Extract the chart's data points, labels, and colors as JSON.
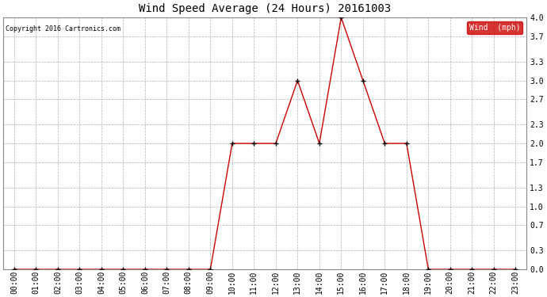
{
  "title": "Wind Speed Average (24 Hours) 20161003",
  "copyright_text": "Copyright 2016 Cartronics.com",
  "background_color": "#ffffff",
  "plot_background": "#ffffff",
  "grid_color": "#b0b0b0",
  "line_color": "#cc0000",
  "marker_color": "#000000",
  "legend_label": "Wind  (mph)",
  "legend_bg": "#cc0000",
  "legend_text_color": "#ffffff",
  "ylim": [
    0.0,
    4.0
  ],
  "yticks": [
    0.0,
    0.3,
    0.7,
    1.0,
    1.3,
    1.7,
    2.0,
    2.3,
    2.7,
    3.0,
    3.3,
    3.7,
    4.0
  ],
  "hours": [
    "00:00",
    "01:00",
    "02:00",
    "03:00",
    "04:00",
    "05:00",
    "06:00",
    "07:00",
    "08:00",
    "09:00",
    "10:00",
    "11:00",
    "12:00",
    "13:00",
    "14:00",
    "15:00",
    "16:00",
    "17:00",
    "18:00",
    "19:00",
    "20:00",
    "21:00",
    "22:00",
    "23:00"
  ],
  "values": [
    0.0,
    0.0,
    0.0,
    0.0,
    0.0,
    0.0,
    0.0,
    0.0,
    0.0,
    0.0,
    2.0,
    2.0,
    2.0,
    3.0,
    2.0,
    4.0,
    3.0,
    2.0,
    2.0,
    0.0,
    0.0,
    0.0,
    0.0,
    0.0
  ],
  "figwidth": 6.9,
  "figheight": 3.75,
  "dpi": 100
}
